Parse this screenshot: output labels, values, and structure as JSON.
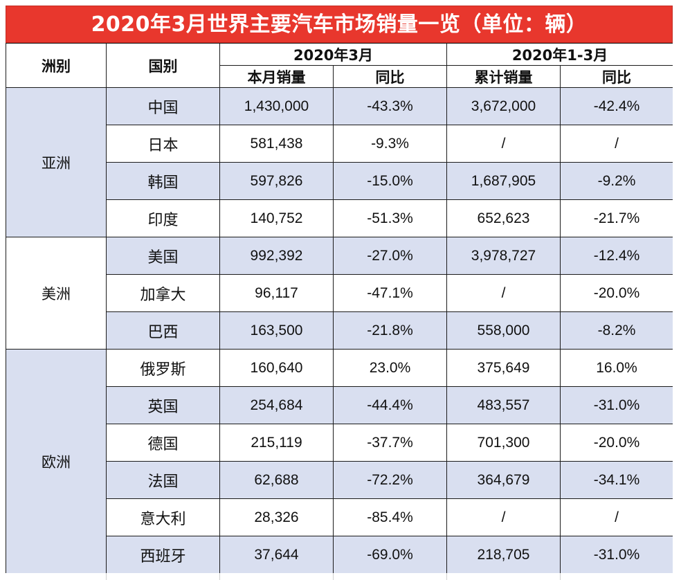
{
  "title": "2020年3月世界主要汽车市场销量一览（单位：辆）",
  "headers": {
    "continent": "洲别",
    "country": "国别",
    "group_month": "2020年3月",
    "group_cum": "2020年1-3月",
    "month_sales": "本月销量",
    "month_yoy": "同比",
    "cum_sales": "累计销量",
    "cum_yoy": "同比"
  },
  "continents": [
    {
      "name": "亚洲",
      "rows": [
        {
          "country": "中国",
          "month_sales": "1,430,000",
          "month_yoy": "-43.3%",
          "cum_sales": "3,672,000",
          "cum_yoy": "-42.4%"
        },
        {
          "country": "日本",
          "month_sales": "581,438",
          "month_yoy": "-9.3%",
          "cum_sales": "/",
          "cum_yoy": "/"
        },
        {
          "country": "韩国",
          "month_sales": "597,826",
          "month_yoy": "-15.0%",
          "cum_sales": "1,687,905",
          "cum_yoy": "-9.2%"
        },
        {
          "country": "印度",
          "month_sales": "140,752",
          "month_yoy": "-51.3%",
          "cum_sales": "652,623",
          "cum_yoy": "-21.7%"
        }
      ]
    },
    {
      "name": "美洲",
      "rows": [
        {
          "country": "美国",
          "month_sales": "992,392",
          "month_yoy": "-27.0%",
          "cum_sales": "3,978,727",
          "cum_yoy": "-12.4%"
        },
        {
          "country": "加拿大",
          "month_sales": "96,117",
          "month_yoy": "-47.1%",
          "cum_sales": "/",
          "cum_yoy": "-20.0%"
        },
        {
          "country": "巴西",
          "month_sales": "163,500",
          "month_yoy": "-21.8%",
          "cum_sales": "558,000",
          "cum_yoy": "-8.2%"
        }
      ]
    },
    {
      "name": "欧洲",
      "rows": [
        {
          "country": "俄罗斯",
          "month_sales": "160,640",
          "month_yoy": "23.0%",
          "cum_sales": "375,649",
          "cum_yoy": "16.0%"
        },
        {
          "country": "英国",
          "month_sales": "254,684",
          "month_yoy": "-44.4%",
          "cum_sales": "483,557",
          "cum_yoy": "-31.0%"
        },
        {
          "country": "德国",
          "month_sales": "215,119",
          "month_yoy": "-37.7%",
          "cum_sales": "701,300",
          "cum_yoy": "-20.0%"
        },
        {
          "country": "法国",
          "month_sales": "62,688",
          "month_yoy": "-72.2%",
          "cum_sales": "364,679",
          "cum_yoy": "-34.1%"
        },
        {
          "country": "意大利",
          "month_sales": "28,326",
          "month_yoy": "-85.4%",
          "cum_sales": "/",
          "cum_yoy": "/"
        },
        {
          "country": "西班牙",
          "month_sales": "37,644",
          "month_yoy": "-69.0%",
          "cum_sales": "218,705",
          "cum_yoy": "-31.0%"
        }
      ]
    }
  ],
  "colors": {
    "title_bg": "#e8372d",
    "shaded_row": "#d9dff0",
    "grid": "#1a1a1a"
  }
}
